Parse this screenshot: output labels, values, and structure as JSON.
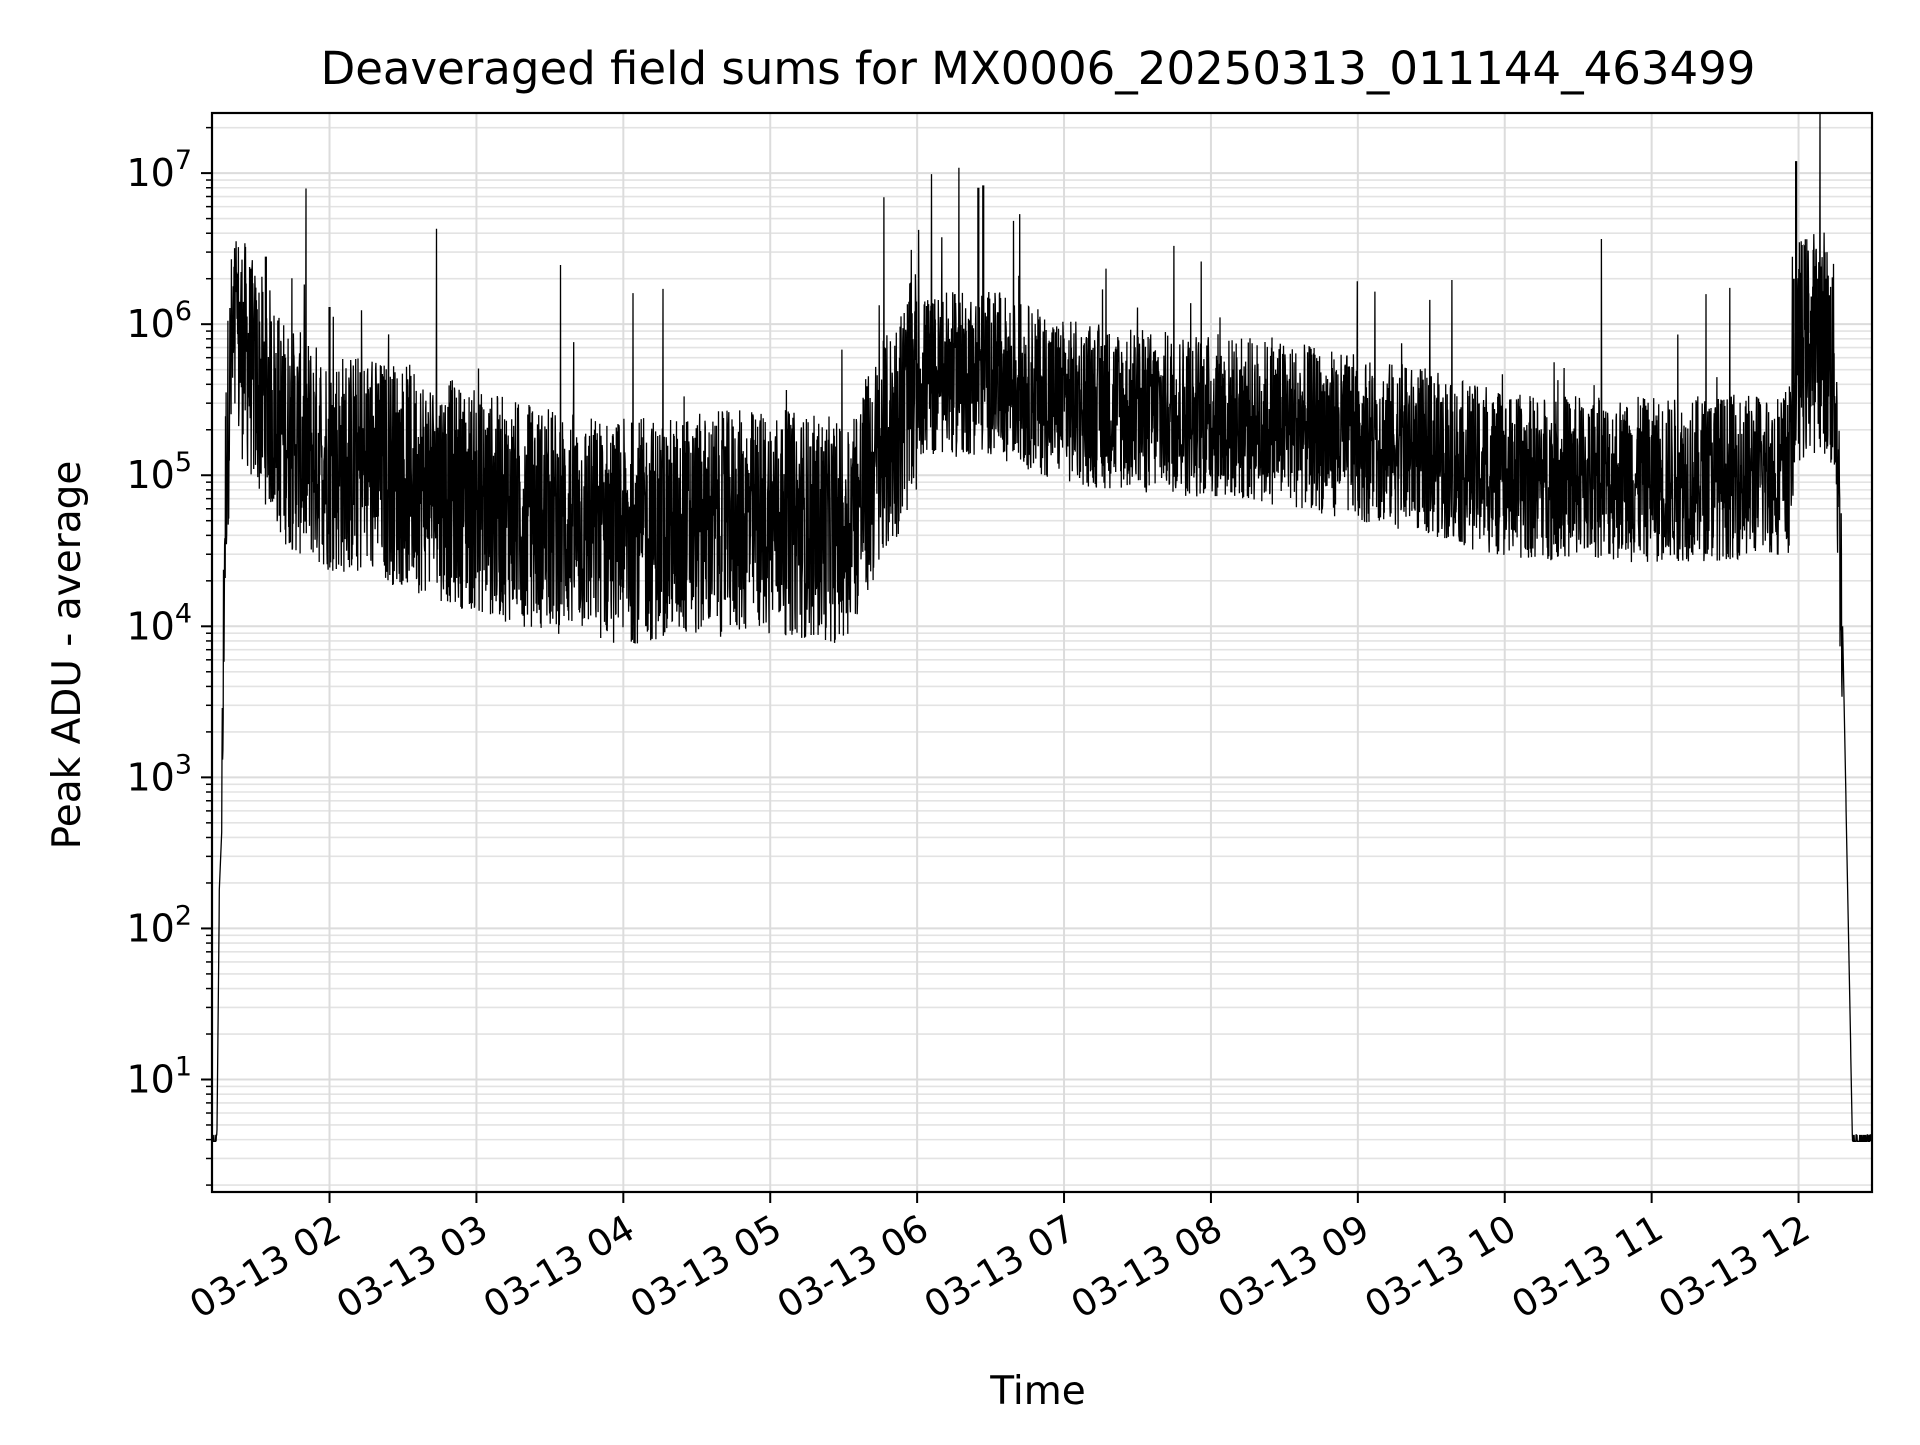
{
  "chart_data": {
    "type": "line",
    "title": "Deaveraged field sums for MX0006_20250313_011144_463499",
    "xlabel": "Time",
    "ylabel": "Peak ADU - average",
    "yscale": "log",
    "ylim": [
      1.8,
      25000000
    ],
    "xlim": [
      "2025-03-13 01:12",
      "2025-03-13 12:30"
    ],
    "grid": true,
    "grid_minor": true,
    "line_color": "#000000",
    "x_ticks": [
      "03-13 02",
      "03-13 03",
      "03-13 04",
      "03-13 05",
      "03-13 06",
      "03-13 07",
      "03-13 08",
      "03-13 09",
      "03-13 10",
      "03-13 11",
      "03-13 12"
    ],
    "y_ticks": [
      {
        "base": "10",
        "exp": "1",
        "value": 10
      },
      {
        "base": "10",
        "exp": "2",
        "value": 100
      },
      {
        "base": "10",
        "exp": "3",
        "value": 1000
      },
      {
        "base": "10",
        "exp": "4",
        "value": 10000
      },
      {
        "base": "10",
        "exp": "5",
        "value": 100000
      },
      {
        "base": "10",
        "exp": "6",
        "value": 1000000
      },
      {
        "base": "10",
        "exp": "7",
        "value": 10000000
      }
    ],
    "series": [
      {
        "points": [
          [
            "2025-03-13 01:12",
            4
          ],
          [
            "2025-03-13 01:14",
            4
          ],
          [
            "2025-03-13 01:15",
            180
          ],
          [
            "2025-03-13 01:16",
            450
          ],
          [
            "2025-03-13 01:17",
            30000
          ],
          [
            "2025-03-13 01:18",
            200000
          ],
          [
            "2025-03-13 01:20",
            700000
          ],
          [
            "2025-03-13 01:22",
            950000
          ],
          [
            "2025-03-13 01:25",
            800000
          ],
          [
            "2025-03-13 01:30",
            500000
          ],
          [
            "2025-03-13 01:35",
            400000
          ],
          [
            "2025-03-13 01:40",
            250000
          ],
          [
            "2025-03-13 01:45",
            200000
          ],
          [
            "2025-03-13 02:00",
            150000
          ],
          [
            "2025-03-13 02:30",
            120000
          ],
          [
            "2025-03-13 03:00",
            80000
          ],
          [
            "2025-03-13 03:30",
            60000
          ],
          [
            "2025-03-13 04:00",
            50000
          ],
          [
            "2025-03-13 04:30",
            55000
          ],
          [
            "2025-03-13 05:00",
            60000
          ],
          [
            "2025-03-13 05:30",
            50000
          ],
          [
            "2025-03-13 05:45",
            150000
          ],
          [
            "2025-03-13 06:00",
            500000
          ],
          [
            "2025-03-13 06:30",
            550000
          ],
          [
            "2025-03-13 07:00",
            350000
          ],
          [
            "2025-03-13 07:30",
            300000
          ],
          [
            "2025-03-13 08:00",
            280000
          ],
          [
            "2025-03-13 08:30",
            250000
          ],
          [
            "2025-03-13 09:00",
            200000
          ],
          [
            "2025-03-13 09:30",
            160000
          ],
          [
            "2025-03-13 10:00",
            110000
          ],
          [
            "2025-03-13 10:30",
            110000
          ],
          [
            "2025-03-13 11:00",
            105000
          ],
          [
            "2025-03-13 11:30",
            110000
          ],
          [
            "2025-03-13 11:56",
            120000
          ],
          [
            "2025-03-13 12:00",
            800000
          ],
          [
            "2025-03-13 12:10",
            1000000
          ],
          [
            "2025-03-13 12:15",
            500000
          ],
          [
            "2025-03-13 12:18",
            10000
          ],
          [
            "2025-03-13 12:20",
            200
          ],
          [
            "2025-03-13 12:22",
            4
          ],
          [
            "2025-03-13 12:30",
            4
          ]
        ]
      }
    ],
    "spikes": [
      [
        "2025-03-13 01:34",
        2800000
      ],
      [
        "2025-03-13 02:00",
        1300000
      ],
      [
        "2025-03-13 06:25",
        8000000
      ],
      [
        "2025-03-13 06:27",
        8300000
      ],
      [
        "2025-03-13 06:29",
        1500000
      ],
      [
        "2025-03-13 06:33",
        1200000
      ],
      [
        "2025-03-13 11:59",
        12000000
      ],
      [
        "2025-03-13 11:58",
        2000000
      ],
      [
        "2025-03-13 12:08",
        2000000
      ],
      [
        "2025-03-13 12:04",
        1600000
      ]
    ]
  }
}
